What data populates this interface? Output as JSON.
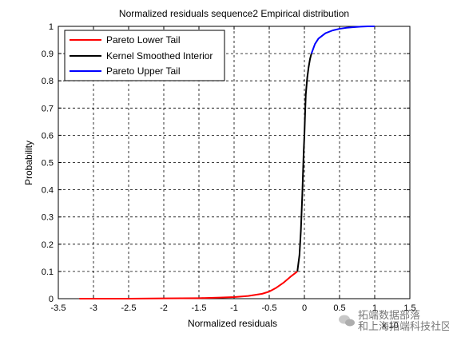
{
  "chart_data": {
    "type": "line",
    "title": "Normalized residuals sequence2 Empirical distribution",
    "xlabel": "Normalized residuals",
    "ylabel": "Probability",
    "xlim": [
      -3.5,
      1.5
    ],
    "ylim": [
      0,
      1
    ],
    "x_exponent_label": "x 10",
    "x_ticks": [
      -3.5,
      -3,
      -2.5,
      -2,
      -1.5,
      -1,
      -0.5,
      0,
      0.5,
      1,
      1.5
    ],
    "x_tick_labels": [
      "-3.5",
      "-3",
      "-2.5",
      "-2",
      "-1.5",
      "-1",
      "-0.5",
      "0",
      "0.5",
      "1",
      "1.5"
    ],
    "y_ticks": [
      0,
      0.1,
      0.2,
      0.3,
      0.4,
      0.5,
      0.6,
      0.7,
      0.8,
      0.9,
      1
    ],
    "y_tick_labels": [
      "0",
      "0.1",
      "0.2",
      "0.3",
      "0.4",
      "0.5",
      "0.6",
      "0.7",
      "0.8",
      "0.9",
      "1"
    ],
    "grid": true,
    "grid_style": "dashed",
    "legend_position": "top-left",
    "series": [
      {
        "name": "Pareto Lower Tail",
        "color": "#ff0000",
        "x": [
          -3.2,
          -2.5,
          -2.0,
          -1.5,
          -1.2,
          -1.0,
          -0.8,
          -0.6,
          -0.5,
          -0.4,
          -0.3,
          -0.2,
          -0.15,
          -0.1
        ],
        "y": [
          0.0,
          0.0,
          0.001,
          0.002,
          0.004,
          0.006,
          0.01,
          0.018,
          0.026,
          0.04,
          0.058,
          0.08,
          0.09,
          0.1
        ]
      },
      {
        "name": "Kernel Smoothed Interior",
        "color": "#000000",
        "x": [
          -0.1,
          -0.07,
          -0.05,
          -0.03,
          -0.02,
          -0.01,
          0.0,
          0.01,
          0.02,
          0.04,
          0.06,
          0.08,
          0.1
        ],
        "y": [
          0.1,
          0.16,
          0.25,
          0.38,
          0.46,
          0.54,
          0.6,
          0.68,
          0.75,
          0.81,
          0.85,
          0.88,
          0.9
        ]
      },
      {
        "name": "Pareto Upper Tail",
        "color": "#0000ff",
        "x": [
          0.1,
          0.15,
          0.2,
          0.3,
          0.4,
          0.5,
          0.6,
          0.7,
          0.8,
          0.9,
          1.0
        ],
        "y": [
          0.9,
          0.935,
          0.955,
          0.975,
          0.985,
          0.991,
          0.995,
          0.997,
          0.999,
          1.0,
          1.0
        ]
      }
    ]
  },
  "watermark": {
    "icon": "wechat-icon",
    "text": "拓端数据部落\n和上海拓端科技社区"
  }
}
